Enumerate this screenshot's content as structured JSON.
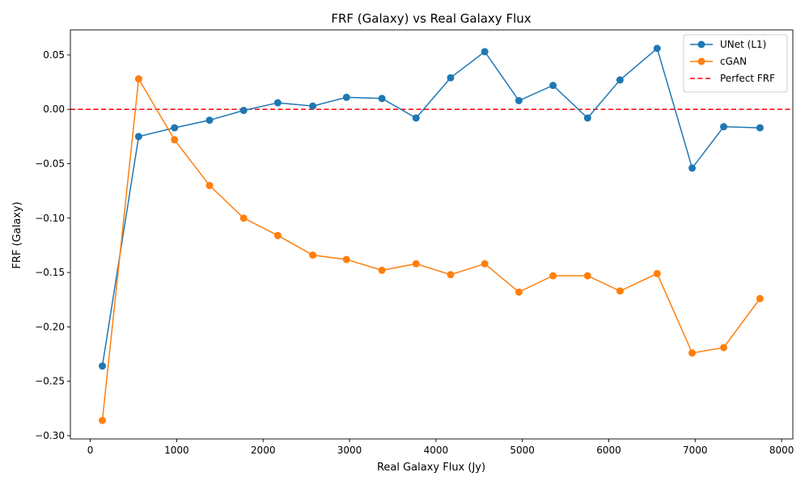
{
  "chart_data": {
    "type": "line",
    "title": "FRF (Galaxy) vs Real Galaxy Flux",
    "xlabel": "Real Galaxy Flux (Jy)",
    "ylabel": "FRF (Galaxy)",
    "xlim": [
      -230,
      8130
    ],
    "ylim": [
      -0.303,
      0.073
    ],
    "xticks": [
      0,
      1000,
      2000,
      3000,
      4000,
      5000,
      6000,
      7000,
      8000
    ],
    "xtick_labels": [
      "0",
      "1000",
      "2000",
      "3000",
      "4000",
      "5000",
      "6000",
      "7000",
      "8000"
    ],
    "yticks": [
      -0.3,
      -0.25,
      -0.2,
      -0.15,
      -0.1,
      -0.05,
      0.0,
      0.05
    ],
    "ytick_labels": [
      "−0.30",
      "−0.25",
      "−0.20",
      "−0.15",
      "−0.10",
      "−0.05",
      "0.00",
      "0.05"
    ],
    "grid": false,
    "legend_position": "top-right",
    "series": [
      {
        "name": "UNet (L1)",
        "color": "#1f77b4",
        "marker": "circle",
        "line_style": "solid",
        "x": [
          140,
          560,
          975,
          1380,
          1775,
          2170,
          2575,
          2965,
          3375,
          3770,
          4170,
          4565,
          4960,
          5355,
          5755,
          6130,
          6560,
          6965,
          7330,
          7750
        ],
        "y": [
          -0.236,
          -0.025,
          -0.017,
          -0.01,
          -0.001,
          0.006,
          0.003,
          0.011,
          0.01,
          -0.008,
          0.029,
          0.053,
          0.008,
          0.022,
          -0.008,
          0.027,
          0.056,
          -0.054,
          -0.016,
          -0.017
        ]
      },
      {
        "name": "cGAN",
        "color": "#ff7f0e",
        "marker": "circle",
        "line_style": "solid",
        "x": [
          140,
          560,
          975,
          1380,
          1775,
          2170,
          2575,
          2965,
          3375,
          3770,
          4170,
          4565,
          4960,
          5355,
          5755,
          6130,
          6560,
          6965,
          7330,
          7750
        ],
        "y": [
          -0.286,
          0.028,
          -0.028,
          -0.07,
          -0.1,
          -0.116,
          -0.134,
          -0.138,
          -0.148,
          -0.142,
          -0.152,
          -0.142,
          -0.168,
          -0.153,
          -0.153,
          -0.167,
          -0.151,
          -0.224,
          -0.219,
          -0.174
        ]
      }
    ],
    "reference_lines": [
      {
        "name": "Perfect FRF",
        "orientation": "horizontal",
        "y": 0,
        "color": "#ff0000",
        "line_style": "dashed"
      }
    ]
  }
}
